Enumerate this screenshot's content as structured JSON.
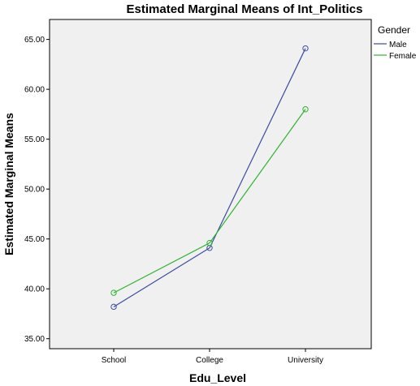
{
  "chart_data": {
    "type": "line",
    "title": "Estimated Marginal Means of Int_Politics",
    "xlabel": "Edu_Level",
    "ylabel": "Estimated Marginal Means",
    "categories": [
      "School",
      "College",
      "University"
    ],
    "ylim": [
      34,
      67
    ],
    "yticks": [
      "35.00",
      "40.00",
      "45.00",
      "50.00",
      "55.00",
      "60.00",
      "65.00"
    ],
    "grid": false,
    "legend": {
      "title": "Gender",
      "position": "right"
    },
    "series": [
      {
        "name": "Male",
        "color": "#3a4ba3",
        "values": [
          38.2,
          44.1,
          64.1
        ]
      },
      {
        "name": "Female",
        "color": "#2db52d",
        "values": [
          39.6,
          44.6,
          58.0
        ]
      }
    ],
    "plot_background": "#f0f0f0"
  }
}
